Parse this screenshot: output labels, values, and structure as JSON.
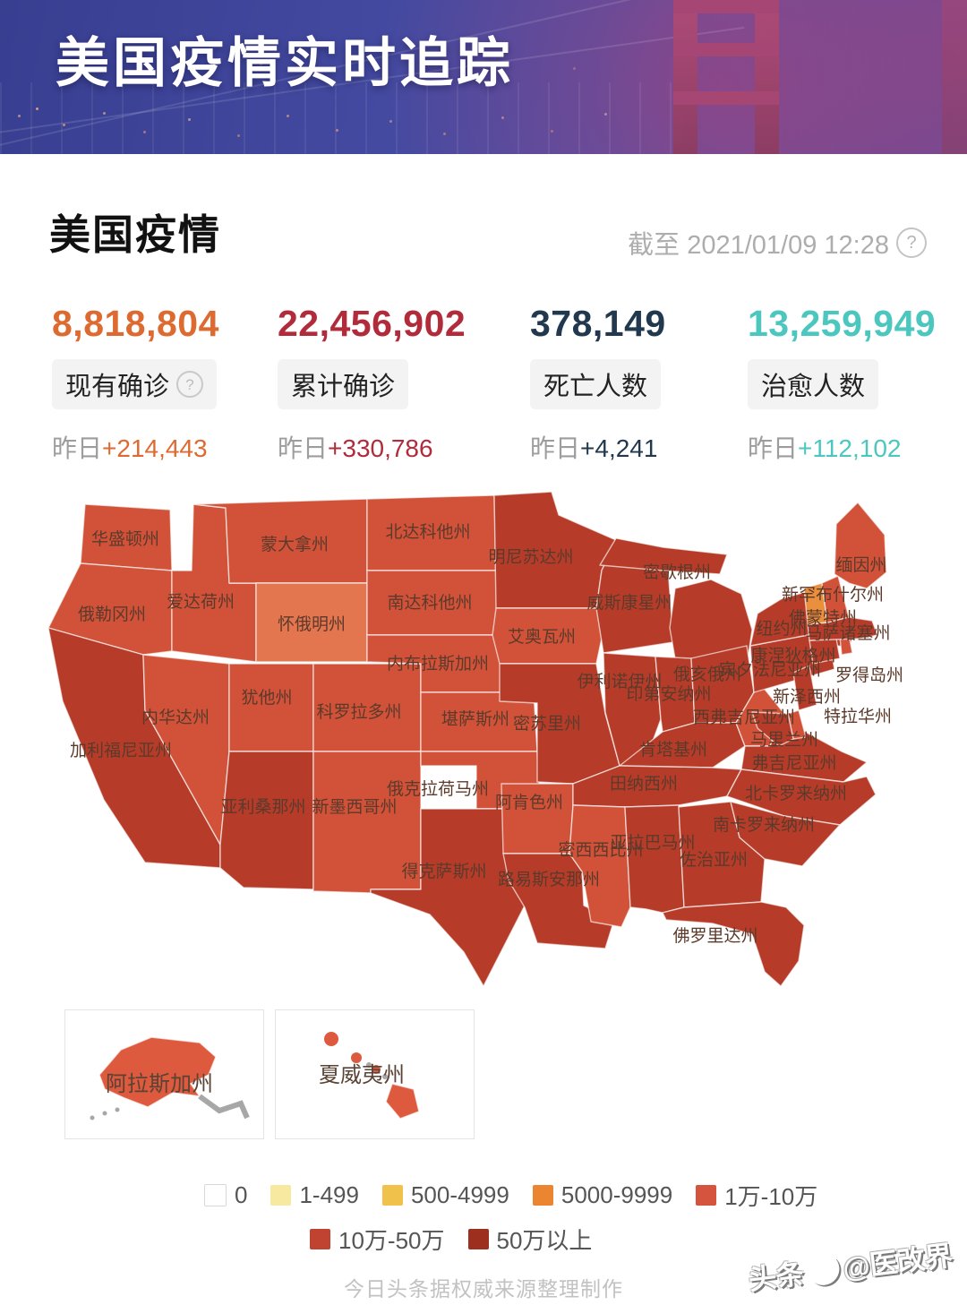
{
  "banner": {
    "title": "美国疫情实时追踪"
  },
  "section": {
    "title": "美国疫情",
    "as_of": "截至 2021/01/09 12:28",
    "help_glyph": "?"
  },
  "stats": [
    {
      "value": "8,818,804",
      "label": "现有确诊",
      "has_help": true,
      "delta_prefix": "昨日",
      "delta": "+214,443",
      "color": "#dd6a31"
    },
    {
      "value": "22,456,902",
      "label": "累计确诊",
      "has_help": false,
      "delta_prefix": "昨日",
      "delta": "+330,786",
      "color": "#b12b3b"
    },
    {
      "value": "378,149",
      "label": "死亡人数",
      "has_help": false,
      "delta_prefix": "昨日",
      "delta": "+4,241",
      "color": "#22384e"
    },
    {
      "value": "13,259,949",
      "label": "治愈人数",
      "has_help": false,
      "delta_prefix": "昨日",
      "delta": "+112,102",
      "color": "#4cc7c0"
    }
  ],
  "map": {
    "bucket_colors": {
      "b4": "#e98f3e",
      "b5": "#d15238",
      "b5l": "#e4764f",
      "b6": "#b63c29"
    },
    "border_color": "rgba(255,255,255,0.65)",
    "states": [
      {
        "id": "WA",
        "name": "华盛顿州",
        "bucket": "b5"
      },
      {
        "id": "OR",
        "name": "俄勒冈州",
        "bucket": "b5"
      },
      {
        "id": "CA",
        "name": "加利福尼亚州",
        "bucket": "b6"
      },
      {
        "id": "NV",
        "name": "内华达州",
        "bucket": "b5"
      },
      {
        "id": "ID",
        "name": "爱达荷州",
        "bucket": "b5"
      },
      {
        "id": "MT",
        "name": "蒙大拿州",
        "bucket": "b5"
      },
      {
        "id": "WY",
        "name": "怀俄明州",
        "bucket": "b5l"
      },
      {
        "id": "UT",
        "name": "犹他州",
        "bucket": "b5"
      },
      {
        "id": "AZ",
        "name": "亚利桑那州",
        "bucket": "b6"
      },
      {
        "id": "CO",
        "name": "科罗拉多州",
        "bucket": "b5"
      },
      {
        "id": "NM",
        "name": "新墨西哥州",
        "bucket": "b5"
      },
      {
        "id": "ND",
        "name": "北达科他州",
        "bucket": "b5"
      },
      {
        "id": "SD",
        "name": "南达科他州",
        "bucket": "b5"
      },
      {
        "id": "NE",
        "name": "内布拉斯加州",
        "bucket": "b5"
      },
      {
        "id": "KS",
        "name": "堪萨斯州",
        "bucket": "b5"
      },
      {
        "id": "OK",
        "name": "俄克拉荷马州",
        "bucket": "b5"
      },
      {
        "id": "TX",
        "name": "得克萨斯州",
        "bucket": "b6"
      },
      {
        "id": "MN",
        "name": "明尼苏达州",
        "bucket": "b6"
      },
      {
        "id": "IA",
        "name": "艾奥瓦州",
        "bucket": "b5"
      },
      {
        "id": "MO",
        "name": "密苏里州",
        "bucket": "b6"
      },
      {
        "id": "AR",
        "name": "阿肯色州",
        "bucket": "b5"
      },
      {
        "id": "LA",
        "name": "路易斯安那州",
        "bucket": "b6"
      },
      {
        "id": "WI",
        "name": "威斯康星州",
        "bucket": "b6"
      },
      {
        "id": "MI",
        "name": "密歇根州",
        "bucket": "b6"
      },
      {
        "id": "IL",
        "name": "伊利诺伊州",
        "bucket": "b6"
      },
      {
        "id": "IN",
        "name": "印第安纳州",
        "bucket": "b6"
      },
      {
        "id": "OH",
        "name": "俄亥俄州",
        "bucket": "b6"
      },
      {
        "id": "KY",
        "name": "肯塔基州",
        "bucket": "b6"
      },
      {
        "id": "TN",
        "name": "田纳西州",
        "bucket": "b6"
      },
      {
        "id": "MS",
        "name": "密西西比州",
        "bucket": "b5"
      },
      {
        "id": "AL",
        "name": "亚拉巴马州",
        "bucket": "b6"
      },
      {
        "id": "GA",
        "name": "佐治亚州",
        "bucket": "b6"
      },
      {
        "id": "FL",
        "name": "佛罗里达州",
        "bucket": "b6"
      },
      {
        "id": "WV",
        "name": "西弗吉尼亚州",
        "bucket": "b5"
      },
      {
        "id": "VA",
        "name": "弗吉尼亚州",
        "bucket": "b6"
      },
      {
        "id": "NC",
        "name": "北卡罗来纳州",
        "bucket": "b6"
      },
      {
        "id": "SC",
        "name": "南卡罗来纳州",
        "bucket": "b6"
      },
      {
        "id": "PA",
        "name": "宾夕法尼亚州",
        "bucket": "b6"
      },
      {
        "id": "NY",
        "name": "纽约州",
        "bucket": "b6"
      },
      {
        "id": "NJ",
        "name": "新泽西州",
        "bucket": "b6"
      },
      {
        "id": "DE",
        "name": "特拉华州",
        "bucket": "b5"
      },
      {
        "id": "MD",
        "name": "马里兰州",
        "bucket": "b6"
      },
      {
        "id": "CT",
        "name": "康涅狄格州",
        "bucket": "b6"
      },
      {
        "id": "RI",
        "name": "罗得岛州",
        "bucket": "b5"
      },
      {
        "id": "MA",
        "name": "马萨诸塞州",
        "bucket": "b6"
      },
      {
        "id": "VT",
        "name": "佛蒙特州",
        "bucket": "b4"
      },
      {
        "id": "NH",
        "name": "新罕布什尔州",
        "bucket": "b5"
      },
      {
        "id": "ME",
        "name": "缅因州",
        "bucket": "b5"
      }
    ],
    "insets": [
      {
        "id": "AK",
        "name": "阿拉斯加州"
      },
      {
        "id": "HI",
        "name": "夏威夷州"
      }
    ]
  },
  "legend": {
    "items": [
      {
        "label": "0",
        "color": "#ffffff",
        "border": "#d8d8d8",
        "row": 1
      },
      {
        "label": "1-499",
        "color": "#f7e9a0",
        "row": 1
      },
      {
        "label": "500-4999",
        "color": "#f0c24c",
        "row": 1
      },
      {
        "label": "5000-9999",
        "color": "#ec8532",
        "row": 1
      },
      {
        "label": "1万-10万",
        "color": "#d4543e",
        "row": 1
      },
      {
        "label": "10万-50万",
        "color": "#c04332",
        "row": 2
      },
      {
        "label": "50万以上",
        "color": "#9c2f1e",
        "row": 2
      }
    ]
  },
  "footer": {
    "credit": "今日头条据权威来源整理制作",
    "watermark": "头条@医改界"
  }
}
